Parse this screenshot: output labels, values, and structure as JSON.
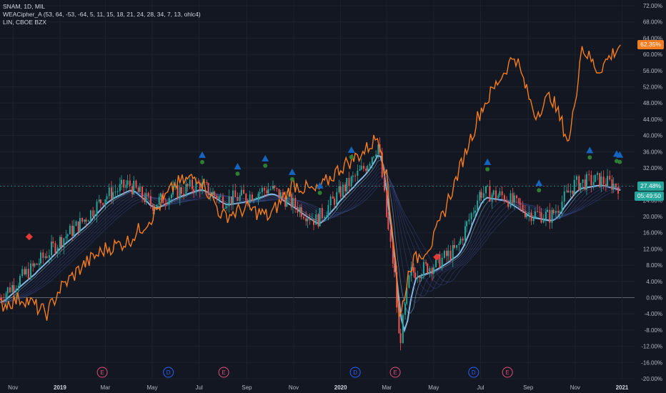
{
  "legend": {
    "main": "SNAM, 1D, MIL",
    "indicator": "WEACipher_A (53, 64, -53, -64, 5, 11, 15, 18, 21, 24, 28, 34, 7, 13, ohlc4)",
    "compare": "LIN, CBOE BZX"
  },
  "colors": {
    "background": "#131722",
    "grid": "#1e222d",
    "axis_text": "#b2b5be",
    "compare_line": "#f57c1f",
    "ribbon_light": "#90caf9",
    "ribbon_dark": "#3a4a8c",
    "candle_up": "#26a69a",
    "candle_down": "#ef5350",
    "price_tag": "#26a69a",
    "compare_tag": "#f57c1f",
    "zero_line": "#787b86",
    "signal_up": "#1565c0",
    "signal_dot": "#2e7d32",
    "signal_down": "#e53935",
    "dividend_marker": "#2962ff",
    "earnings_marker": "#e04f76"
  },
  "price_tags": {
    "current": "27.48%",
    "countdown": "05:49:50",
    "compare": "62.35%"
  },
  "chart_data": {
    "type": "line",
    "xlabel": "",
    "ylabel": "",
    "ylim": [
      -20,
      72
    ],
    "y_ticks": [
      "72.00%",
      "68.00%",
      "64.00%",
      "60.00%",
      "56.00%",
      "52.00%",
      "48.00%",
      "44.00%",
      "40.00%",
      "36.00%",
      "32.00%",
      "28.00%",
      "24.00%",
      "20.00%",
      "16.00%",
      "12.00%",
      "8.00%",
      "4.00%",
      "0.00%",
      "-4.00%",
      "-8.00%",
      "-12.00%",
      "-16.00%",
      "-20.00%"
    ],
    "x_ticks": [
      "Nov",
      "2019",
      "Mar",
      "May",
      "Jul",
      "Sep",
      "Nov",
      "2020",
      "Mar",
      "May",
      "Jul",
      "Sep",
      "Nov",
      "2021"
    ],
    "bold_x_ticks": [
      "2019",
      "2020",
      "2021"
    ],
    "series": [
      {
        "name": "SNAM",
        "x": [
          "2018-10-15",
          "2018-11-01",
          "2018-12-01",
          "2019-01-01",
          "2019-02-01",
          "2019-03-01",
          "2019-04-01",
          "2019-05-01",
          "2019-06-01",
          "2019-07-01",
          "2019-08-01",
          "2019-09-01",
          "2019-10-01",
          "2019-11-01",
          "2019-12-01",
          "2020-01-01",
          "2020-02-01",
          "2020-02-20",
          "2020-03-01",
          "2020-03-12",
          "2020-03-18",
          "2020-04-01",
          "2020-05-01",
          "2020-06-01",
          "2020-07-01",
          "2020-08-01",
          "2020-09-01",
          "2020-10-01",
          "2020-11-01",
          "2020-12-01",
          "2020-12-30"
        ],
        "y": [
          0,
          3,
          8,
          14,
          19,
          25,
          28,
          23,
          26,
          28,
          24,
          25,
          27,
          23,
          19,
          26,
          32,
          38,
          20,
          5,
          -12,
          6,
          8,
          12,
          26,
          25,
          21,
          20,
          28,
          29,
          27.48
        ]
      },
      {
        "name": "LIN",
        "x": [
          "2018-10-15",
          "2018-11-15",
          "2018-12-15",
          "2019-01-01",
          "2019-02-01",
          "2019-03-01",
          "2019-04-01",
          "2019-05-01",
          "2019-06-01",
          "2019-07-01",
          "2019-08-01",
          "2019-09-01",
          "2019-10-01",
          "2019-11-01",
          "2019-12-01",
          "2020-01-01",
          "2020-02-01",
          "2020-02-20",
          "2020-03-01",
          "2020-03-12",
          "2020-03-18",
          "2020-04-01",
          "2020-05-01",
          "2020-06-01",
          "2020-07-01",
          "2020-07-20",
          "2020-08-15",
          "2020-09-10",
          "2020-10-01",
          "2020-10-25",
          "2020-11-10",
          "2020-12-01",
          "2020-12-30"
        ],
        "y": [
          -2,
          0,
          -4,
          2,
          8,
          12,
          14,
          20,
          28,
          30,
          20,
          22,
          20,
          28,
          26,
          32,
          36,
          40,
          30,
          12,
          -6,
          8,
          14,
          30,
          46,
          52,
          60,
          45,
          50,
          38,
          62,
          56,
          62.35
        ]
      }
    ],
    "grid": true,
    "legend_placement": "top-left"
  },
  "markers": {
    "dividend_label": "D",
    "earnings_label": "E",
    "dividends": [
      "2019-05-22",
      "2020-01-20",
      "2020-06-22"
    ],
    "earnings": [
      "2019-02-25",
      "2019-08-02",
      "2020-03-12",
      "2020-08-05"
    ]
  }
}
